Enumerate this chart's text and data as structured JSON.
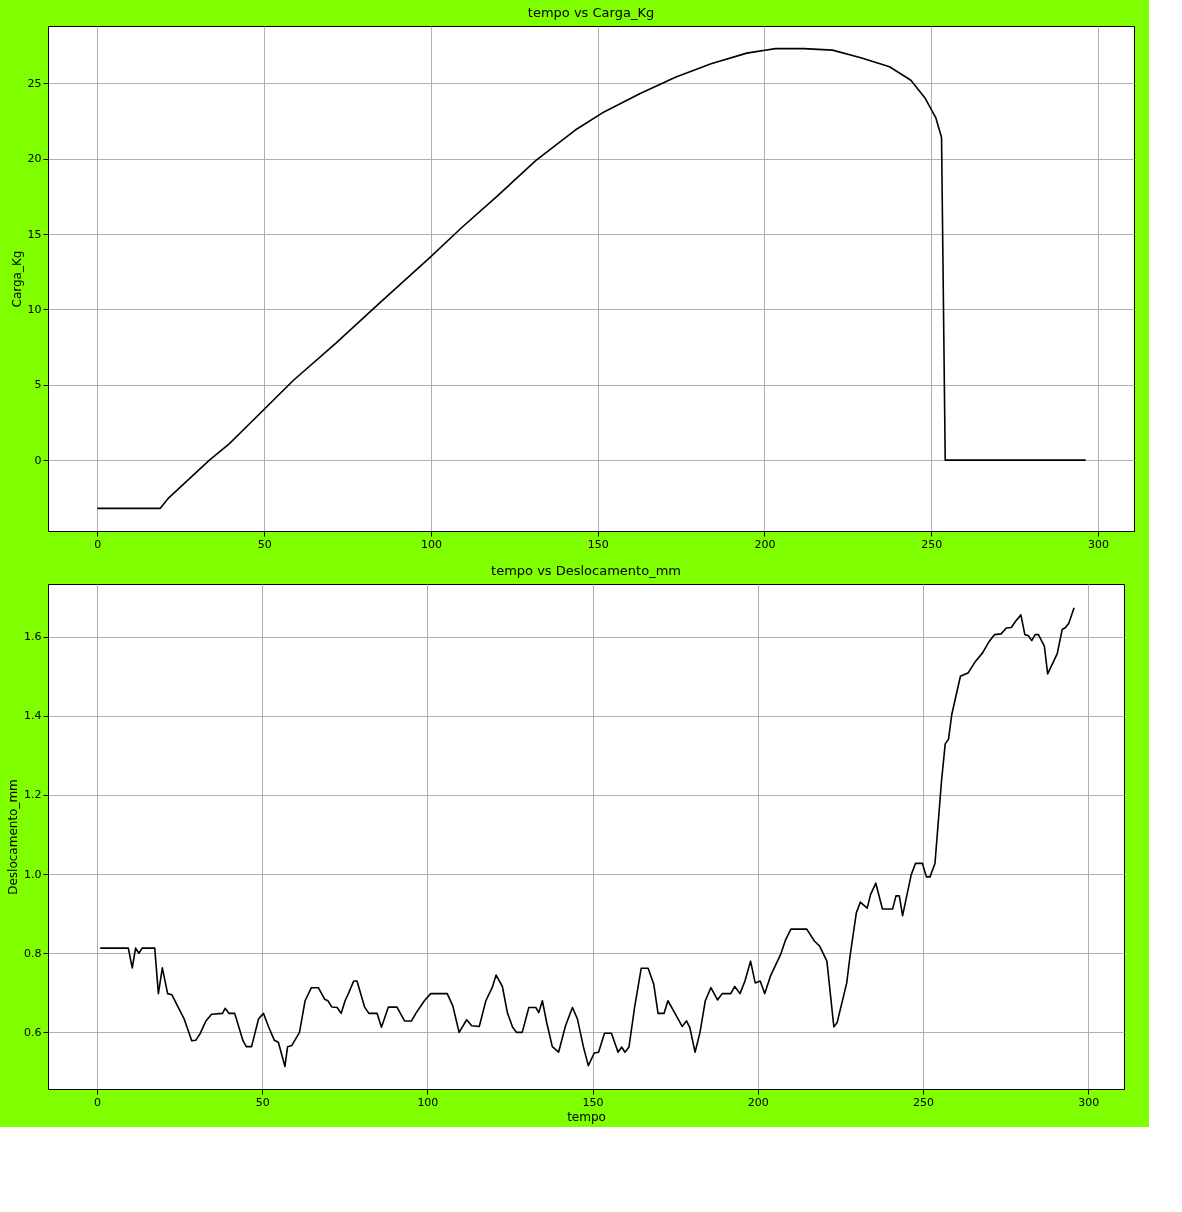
{
  "chart_data": [
    {
      "type": "line",
      "title": "tempo vs Carga_Kg",
      "ylabel": "Carga_Kg",
      "x": [
        0,
        18.8,
        21.4,
        33.6,
        39.6,
        46,
        58.8,
        71.7,
        84.5,
        99.5,
        109.1,
        119.8,
        131.6,
        143.3,
        151.9,
        162.6,
        173.3,
        184,
        194.7,
        203.3,
        211.8,
        220.4,
        228.9,
        237.5,
        243.9,
        248.2,
        251.4,
        253.1,
        254.2,
        296.3
      ],
      "series": [
        {
          "color": "#000000",
          "values": [
            -3.2,
            -3.2,
            -2.5,
            0,
            1.1,
            2.5,
            5.3,
            7.8,
            10.4,
            13.4,
            15.4,
            17.5,
            19.9,
            21.9,
            23.1,
            24.3,
            25.4,
            26.3,
            27.0,
            27.3,
            27.3,
            27.2,
            26.7,
            26.1,
            25.2,
            24.0,
            22.7,
            21.4,
            0,
            0
          ]
        }
      ],
      "xlim": [
        -14.8,
        310.8
      ],
      "ylim": [
        -4.7,
        28.8
      ],
      "xticks": [
        0,
        50,
        100,
        150,
        200,
        250,
        300
      ],
      "yticks": [
        0,
        5,
        10,
        15,
        20,
        25
      ],
      "grid": true
    },
    {
      "type": "line",
      "title": "tempo vs Deslocamento_mm",
      "xlabel": "tempo",
      "ylabel": "Deslocamento_mm",
      "x": [
        1,
        9.5,
        10.7,
        11.7,
        12.7,
        13.7,
        17.5,
        18.6,
        19.8,
        21.4,
        22.7,
        26.4,
        28.7,
        29.9,
        31.3,
        33,
        34.7,
        38,
        38.8,
        40,
        41.7,
        44.2,
        45.2,
        46.8,
        48.9,
        50.4,
        52,
        53.7,
        54.9,
        56.9,
        57.7,
        59,
        61.3,
        63,
        64.9,
        67,
        68.9,
        69.9,
        71.1,
        72.7,
        73.9,
        75.1,
        76.1,
        77.7,
        78.7,
        81,
        82.3,
        84.8,
        86.1,
        88.2,
        90.8,
        93.1,
        95.2,
        96.5,
        99.1,
        101,
        103.2,
        105.2,
        106,
        107.7,
        109.6,
        111.9,
        113.4,
        115.7,
        117.7,
        119.6,
        120.8,
        122.7,
        124.2,
        125.8,
        127,
        128.7,
        130.7,
        132.8,
        133.7,
        134.8,
        136.1,
        137.8,
        139.7,
        141.8,
        143.9,
        145.4,
        147.2,
        148.7,
        150.5,
        151.8,
        153.6,
        155.7,
        157.7,
        158.8,
        159.8,
        161,
        162.7,
        164.7,
        166.8,
        168.5,
        169.8,
        171.6,
        172.8,
        174.8,
        177.1,
        178.4,
        179.4,
        181,
        182.5,
        184.1,
        185.8,
        187.8,
        189.2,
        191.8,
        193,
        194.6,
        196.1,
        197.8,
        199.2,
        200.7,
        202.1,
        203.8,
        206.9,
        208.4,
        210,
        214.8,
        217.1,
        218.7,
        220.9,
        223,
        224,
        226.9,
        227.9,
        229.8,
        231,
        233.1,
        234.1,
        235.7,
        237.7,
        240.8,
        241.8,
        242.8,
        243.8,
        246.4,
        247.7,
        249.8,
        251,
        252.1,
        253.6,
        255.6,
        256.7,
        257.7,
        258.7,
        261.3,
        263.7,
        265.9,
        268,
        270,
        271.6,
        273.6,
        275.2,
        276.7,
        278,
        279.6,
        280.8,
        281.8,
        282.9,
        283.9,
        284.9,
        286.7,
        287.7,
        290.6,
        292.1,
        293.1,
        294.1,
        295.7
      ],
      "series": [
        {
          "color": "#000000",
          "values": [
            0.813,
            0.813,
            0.763,
            0.813,
            0.8,
            0.813,
            0.813,
            0.698,
            0.763,
            0.698,
            0.695,
            0.634,
            0.579,
            0.58,
            0.598,
            0.629,
            0.646,
            0.648,
            0.661,
            0.648,
            0.648,
            0.579,
            0.564,
            0.564,
            0.634,
            0.648,
            0.613,
            0.58,
            0.575,
            0.514,
            0.564,
            0.567,
            0.6,
            0.68,
            0.713,
            0.713,
            0.684,
            0.68,
            0.664,
            0.663,
            0.648,
            0.68,
            0.698,
            0.73,
            0.73,
            0.664,
            0.648,
            0.648,
            0.613,
            0.664,
            0.664,
            0.629,
            0.629,
            0.648,
            0.68,
            0.698,
            0.698,
            0.698,
            0.698,
            0.667,
            0.6,
            0.632,
            0.617,
            0.615,
            0.68,
            0.713,
            0.745,
            0.716,
            0.65,
            0.613,
            0.6,
            0.6,
            0.663,
            0.663,
            0.65,
            0.68,
            0.625,
            0.564,
            0.55,
            0.617,
            0.663,
            0.634,
            0.564,
            0.516,
            0.548,
            0.55,
            0.598,
            0.598,
            0.55,
            0.563,
            0.55,
            0.563,
            0.663,
            0.762,
            0.762,
            0.722,
            0.648,
            0.648,
            0.68,
            0.65,
            0.615,
            0.629,
            0.613,
            0.55,
            0.6,
            0.68,
            0.713,
            0.682,
            0.698,
            0.698,
            0.716,
            0.698,
            0.73,
            0.78,
            0.725,
            0.73,
            0.698,
            0.742,
            0.797,
            0.834,
            0.861,
            0.861,
            0.831,
            0.818,
            0.78,
            0.614,
            0.625,
            0.725,
            0.793,
            0.902,
            0.929,
            0.914,
            0.948,
            0.977,
            0.912,
            0.912,
            0.945,
            0.945,
            0.895,
            0.998,
            1.027,
            1.027,
            0.993,
            0.993,
            1.027,
            1.237,
            1.329,
            1.341,
            1.404,
            1.5,
            1.509,
            1.538,
            1.559,
            1.588,
            1.605,
            1.607,
            1.622,
            1.623,
            1.639,
            1.655,
            1.605,
            1.603,
            1.59,
            1.605,
            1.605,
            1.576,
            1.506,
            1.557,
            1.618,
            1.623,
            1.634,
            1.673
          ]
        }
      ],
      "xlim": [
        -14.8,
        310.8
      ],
      "ylim": [
        0.457,
        1.733
      ],
      "xticks": [
        0,
        50,
        100,
        150,
        200,
        250,
        300
      ],
      "yticks": [
        {
          "value": 0.6,
          "label": "0.6"
        },
        {
          "value": 0.8,
          "label": "0.8"
        },
        {
          "value": 1.0,
          "label": "1.0"
        },
        {
          "value": 1.2,
          "label": "1.2"
        },
        {
          "value": 1.4,
          "label": "1.4"
        },
        {
          "value": 1.6,
          "label": "1.6"
        }
      ],
      "grid": true
    }
  ]
}
